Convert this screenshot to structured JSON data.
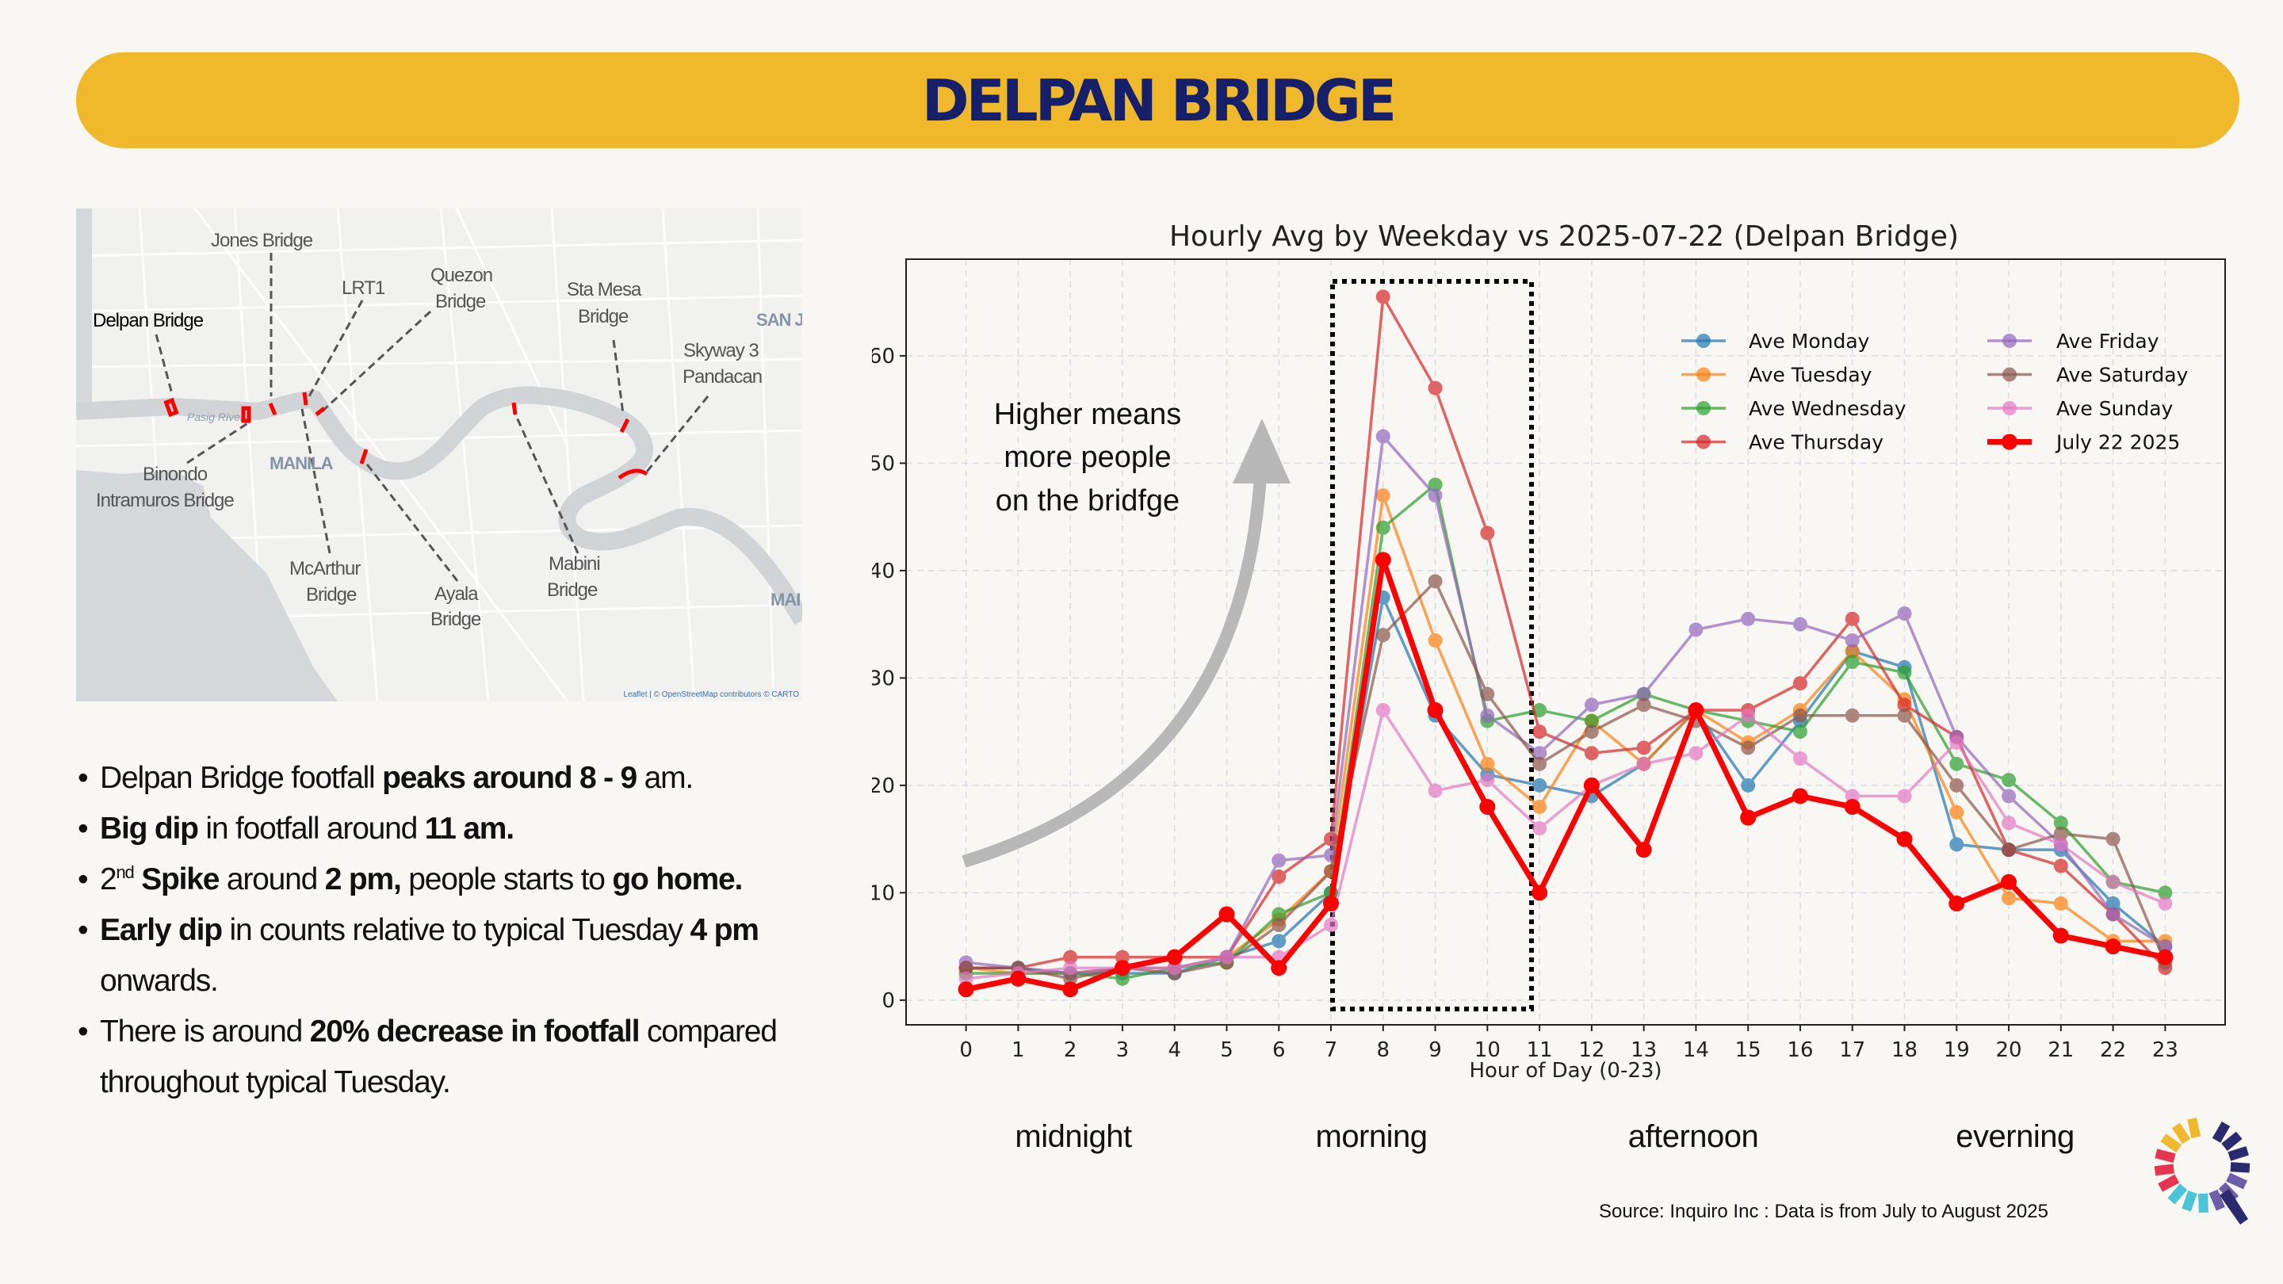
{
  "header": {
    "title": "DELPAN BRIDGE",
    "background": "#f0b92b",
    "title_color": "#16206a"
  },
  "map": {
    "labels": {
      "delpan": "Delpan Bridge",
      "jones": "Jones Bridge",
      "lrt1": "LRT1",
      "quezon_1": "Quezon",
      "quezon_2": "Bridge",
      "stamesa_1": "Sta Mesa",
      "stamesa_2": "Bridge",
      "skyway_1": "Skyway 3",
      "skyway_2": "Pandacan",
      "binondo_1": "Binondo",
      "binondo_2": "Intramuros Bridge",
      "mcarthur_1": "McArthur",
      "mcarthur_2": "Bridge",
      "ayala_1": "Ayala",
      "ayala_2": "Bridge",
      "mabini_1": "Mabini",
      "mabini_2": "Bridge",
      "manila": "MANILA",
      "san_j": "SAN J",
      "mai": "MAI"
    },
    "river_label": "Pasig River",
    "attribution": "Leaflet | © OpenStreetMap contributors © CARTO",
    "highlight_color": "#ff0000"
  },
  "bullets": [
    [
      {
        "t": "Delpan Bridge footfall "
      },
      {
        "t": "peaks around 8 - 9",
        "b": true
      },
      {
        "t": " am."
      }
    ],
    [
      {
        "t": "Big dip",
        "b": true
      },
      {
        "t": " in footfall around "
      },
      {
        "t": "11 am.",
        "b": true
      }
    ],
    [
      {
        "t": "2"
      },
      {
        "t": "nd",
        "sup": true
      },
      {
        "t": " Spike",
        "b": true
      },
      {
        "t": " around "
      },
      {
        "t": "2 pm,",
        "b": true
      },
      {
        "t": " people starts to "
      },
      {
        "t": "go home.",
        "b": true
      }
    ],
    [
      {
        "t": "Early dip",
        "b": true
      },
      {
        "t": " in counts relative to typical Tuesday "
      },
      {
        "t": "4 pm",
        "b": true
      },
      {
        "t": " onwards."
      }
    ],
    [
      {
        "t": "There is around "
      },
      {
        "t": "20% decrease in footfall",
        "b": true
      },
      {
        "t": " compared throughout typical Tuesday."
      }
    ]
  ],
  "chart_data": {
    "type": "line",
    "title": "Hourly Avg by Weekday vs 2025-07-22 (Delpan Bridge)",
    "xlabel": "Hour of Day (0-23)",
    "ylabel": "",
    "x": [
      0,
      1,
      2,
      3,
      4,
      5,
      6,
      7,
      8,
      9,
      10,
      11,
      12,
      13,
      14,
      15,
      16,
      17,
      18,
      19,
      20,
      21,
      22,
      23
    ],
    "xlim": [
      -1.15,
      24.15
    ],
    "ylim": [
      -2.3,
      69
    ],
    "yticks": [
      0,
      10,
      20,
      30,
      40,
      50,
      60
    ],
    "grid": true,
    "legend_position": "top-right",
    "series": [
      {
        "name": "Ave Monday",
        "color": "#1f77b4",
        "values": [
          3,
          3,
          2.5,
          2.5,
          2.5,
          4,
          5.5,
          10,
          37.5,
          26.5,
          21,
          20,
          19,
          22,
          27,
          20,
          26,
          32.5,
          31,
          14.5,
          14,
          14,
          9,
          5
        ]
      },
      {
        "name": "Ave Tuesday",
        "color": "#ff7f0e",
        "values": [
          3,
          2.5,
          2.5,
          3,
          3,
          4,
          7.5,
          12,
          47,
          33.5,
          22,
          18,
          26,
          22,
          27,
          24,
          27,
          32.5,
          28,
          17.5,
          9.5,
          9,
          5.5,
          5.5
        ]
      },
      {
        "name": "Ave Wednesday",
        "color": "#2ca02c",
        "values": [
          2.5,
          2.5,
          2.5,
          2,
          3,
          3.5,
          8,
          10,
          44,
          48,
          26,
          27,
          26,
          28.5,
          27,
          26,
          25,
          31.5,
          30.5,
          22,
          20.5,
          16.5,
          11,
          10
        ]
      },
      {
        "name": "Ave Thursday",
        "color": "#d62728",
        "values": [
          3,
          3,
          4,
          4,
          4,
          4,
          11.5,
          15,
          65.5,
          57,
          43.5,
          25,
          23,
          23.5,
          27,
          27,
          29.5,
          35.5,
          27.5,
          24.5,
          14,
          12.5,
          8,
          3
        ]
      },
      {
        "name": "Ave Friday",
        "color": "#9467bd",
        "values": [
          3.5,
          3,
          2.5,
          3,
          3,
          4,
          13,
          13.5,
          52.5,
          47,
          26.5,
          23,
          27.5,
          28.5,
          34.5,
          35.5,
          35,
          33.5,
          36,
          24.5,
          19,
          14.5,
          8,
          5
        ]
      },
      {
        "name": "Ave Saturday",
        "color": "#8c564b",
        "values": [
          3,
          3,
          2,
          3,
          2.5,
          3.5,
          7,
          12,
          34,
          39,
          28.5,
          22,
          25,
          27.5,
          26,
          23.5,
          26.5,
          26.5,
          26.5,
          20,
          14,
          15.5,
          15,
          3.5
        ]
      },
      {
        "name": "Ave Sunday",
        "color": "#e377c2",
        "values": [
          2,
          2.5,
          3,
          3,
          3,
          4,
          4,
          7,
          27,
          19.5,
          20.5,
          16,
          20,
          22,
          23,
          26.5,
          22.5,
          19,
          19,
          24,
          16.5,
          14.5,
          11,
          9
        ]
      },
      {
        "name": "July 22 2025",
        "color": "#ff0000",
        "highlight": true,
        "values": [
          1,
          2,
          1,
          3,
          4,
          8,
          3,
          9,
          41,
          27,
          18,
          10,
          20,
          14,
          27,
          17,
          19,
          18,
          15,
          9,
          11,
          6,
          5,
          4
        ]
      }
    ],
    "annotations": {
      "note_lines": [
        "Higher means",
        "more people",
        "on the bridfge"
      ],
      "highlight_box_hours": [
        7,
        11
      ]
    }
  },
  "periods": [
    "midnight",
    "morning",
    "afternoon",
    "everning"
  ],
  "source": "Source: Inquiro Inc : Data is from July to August 2025",
  "logo": {
    "colors": [
      "#e8354f",
      "#f0b92b",
      "#2b2a6e",
      "#6c5fa8",
      "#4bc4d8"
    ]
  }
}
